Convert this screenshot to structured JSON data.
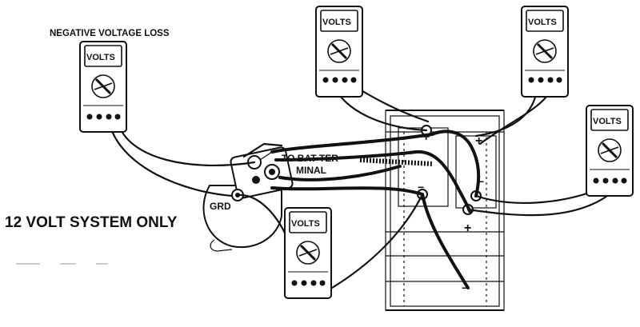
{
  "labels": {
    "title_top": "NEGATIVE VOLTAGE LOSS",
    "system": "12 VOLT SYSTEM ONLY",
    "grd": "GRD",
    "to_bat_line1": "TO BAT TER-",
    "to_bat_line2": "MINAL",
    "plus": "+",
    "minus": "−"
  },
  "meters": [
    {
      "id": "meter-negative-loss",
      "display": "VOLTS"
    },
    {
      "id": "meter-top-center",
      "display": "VOLTS"
    },
    {
      "id": "meter-top-right",
      "display": "VOLTS"
    },
    {
      "id": "meter-right",
      "display": "VOLTS"
    },
    {
      "id": "meter-bottom-center",
      "display": "VOLTS"
    }
  ]
}
